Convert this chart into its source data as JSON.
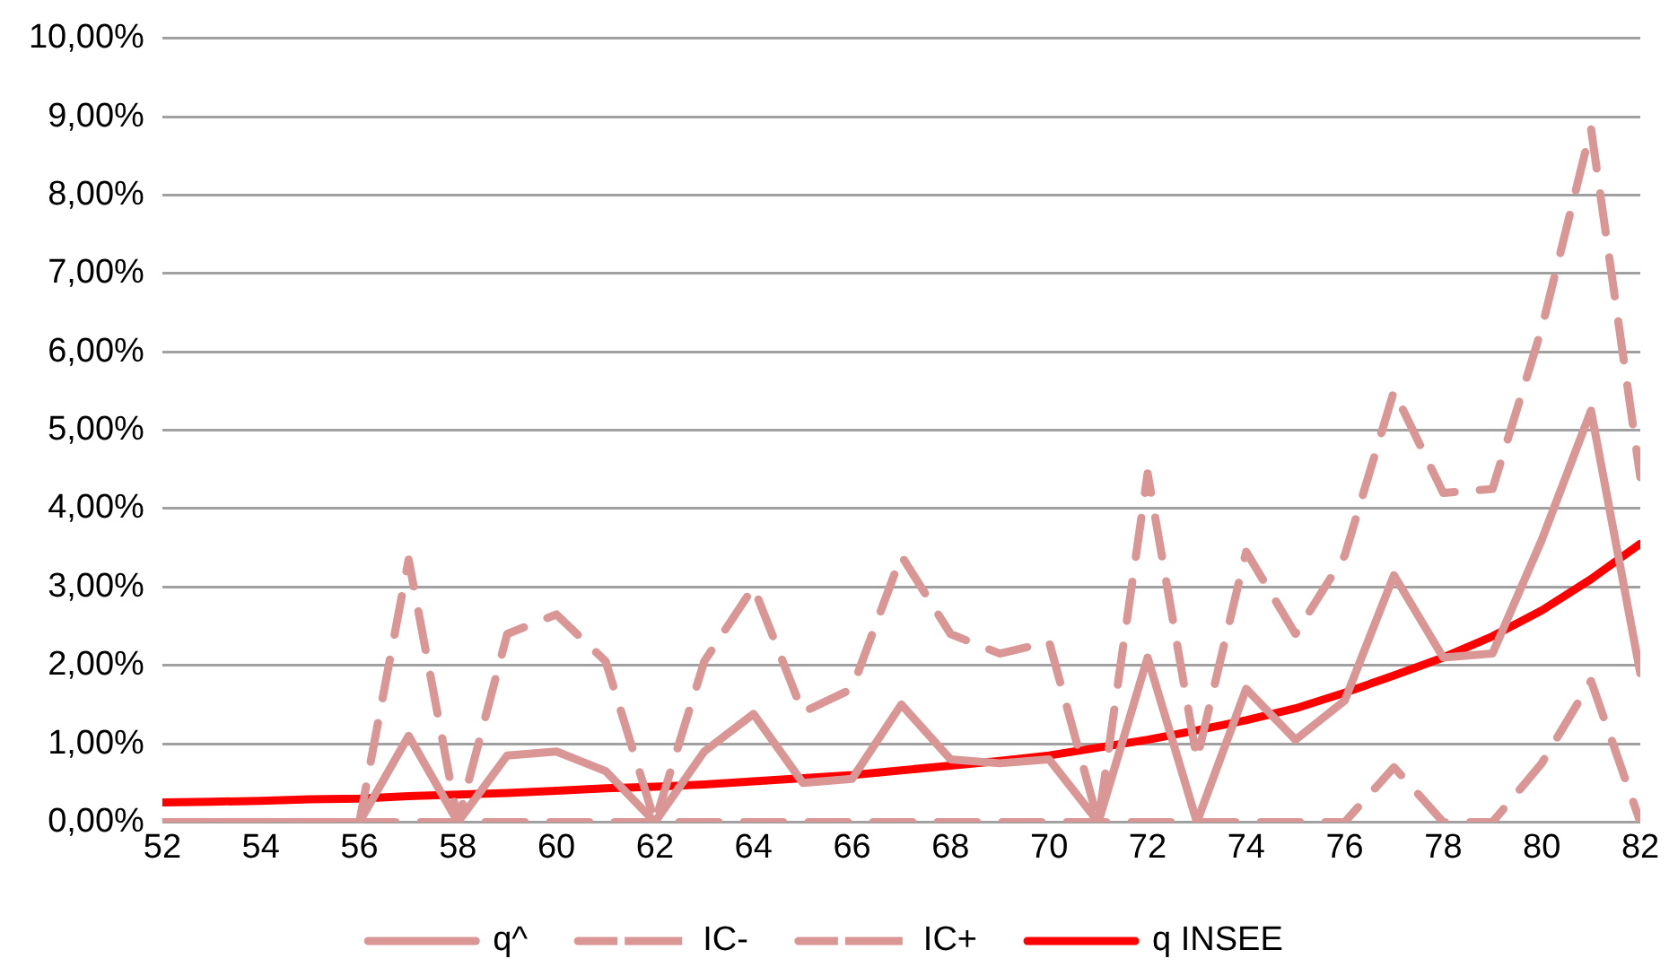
{
  "chart_data": {
    "type": "line",
    "x": [
      52,
      53,
      54,
      55,
      56,
      57,
      58,
      59,
      60,
      61,
      62,
      63,
      64,
      65,
      66,
      67,
      68,
      69,
      70,
      71,
      72,
      73,
      74,
      75,
      76,
      77,
      78,
      79,
      80,
      81,
      82
    ],
    "xlim": [
      52,
      82
    ],
    "xticks": [
      52,
      54,
      56,
      58,
      60,
      62,
      64,
      66,
      68,
      70,
      72,
      74,
      76,
      78,
      80,
      82
    ],
    "ylim": [
      0,
      10
    ],
    "yticks": [
      {
        "value": 0,
        "label": "0,00%"
      },
      {
        "value": 1,
        "label": "1,00%"
      },
      {
        "value": 2,
        "label": "2,00%"
      },
      {
        "value": 3,
        "label": "3,00%"
      },
      {
        "value": 4,
        "label": "4,00%"
      },
      {
        "value": 5,
        "label": "5,00%"
      },
      {
        "value": 6,
        "label": "6,00%"
      },
      {
        "value": 7,
        "label": "7,00%"
      },
      {
        "value": 8,
        "label": "8,00%"
      },
      {
        "value": 9,
        "label": "9,00%"
      },
      {
        "value": 10,
        "label": "10,00%"
      }
    ],
    "grid": "y",
    "legend": "bottom",
    "marker": "none",
    "series": [
      {
        "name": "q^",
        "color": "#d99694",
        "line_style": "solid",
        "values": [
          0,
          0,
          0,
          0,
          0,
          1.1,
          0,
          0.85,
          0.9,
          0.65,
          0,
          0.9,
          1.38,
          0.5,
          0.55,
          1.5,
          0.8,
          0.75,
          0.8,
          0,
          2.1,
          0,
          1.7,
          1.05,
          1.55,
          3.15,
          2.1,
          2.15,
          3.6,
          5.25,
          1.9
        ]
      },
      {
        "name": "IC-",
        "color": "#d99694",
        "line_style": "dashed",
        "values": [
          0,
          0,
          0,
          0,
          0,
          0,
          0,
          0,
          0,
          0,
          0,
          0,
          0,
          0,
          0,
          0,
          0,
          0,
          0,
          0,
          0,
          0,
          0,
          0,
          0,
          0.7,
          0,
          0,
          0.75,
          1.8,
          0
        ]
      },
      {
        "name": "IC+",
        "color": "#d99694",
        "line_style": "dashed",
        "values": [
          0,
          0,
          0,
          0,
          0,
          3.35,
          0,
          2.4,
          2.65,
          2.05,
          0,
          2.05,
          3.0,
          1.4,
          1.7,
          3.4,
          2.4,
          2.15,
          2.3,
          0,
          4.45,
          0.8,
          3.45,
          2.4,
          3.4,
          5.5,
          4.2,
          4.25,
          6.3,
          8.85,
          4.4
        ]
      },
      {
        "name": "q INSEE",
        "color": "#ff0000",
        "line_style": "solid",
        "values": [
          0.25,
          0.26,
          0.27,
          0.29,
          0.3,
          0.33,
          0.35,
          0.37,
          0.4,
          0.43,
          0.45,
          0.48,
          0.52,
          0.56,
          0.6,
          0.66,
          0.72,
          0.78,
          0.85,
          0.95,
          1.05,
          1.17,
          1.3,
          1.45,
          1.65,
          1.87,
          2.1,
          2.37,
          2.7,
          3.1,
          3.55
        ]
      }
    ]
  }
}
